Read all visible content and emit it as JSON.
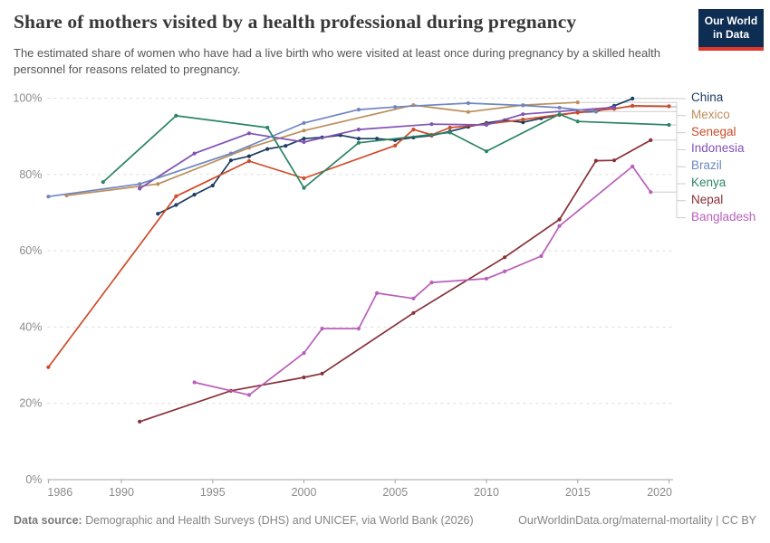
{
  "header": {
    "title": "Share of mothers visited by a health professional during pregnancy",
    "subtitle": "The estimated share of women who have had a live birth who were visited at least once during pregnancy by a skilled health personnel for reasons related to pregnancy.",
    "logo": {
      "line1": "Our World",
      "line2": "in Data",
      "bg_color": "#0d2d52",
      "accent_color": "#e0362c"
    }
  },
  "chart_data": {
    "type": "line",
    "title": "Share of mothers visited by a health professional during pregnancy",
    "xlabel": "",
    "ylabel": "",
    "xlim": [
      1986,
      2020
    ],
    "ylim": [
      0,
      100
    ],
    "x_ticks": [
      1986,
      1990,
      1995,
      2000,
      2005,
      2010,
      2015,
      2020
    ],
    "y_ticks": [
      0,
      20,
      40,
      60,
      80,
      100
    ],
    "y_tick_suffix": "%",
    "grid": "dashed-horizontal",
    "legend_position": "right",
    "grid_color": "#dcdcdc",
    "axis_color": "#a3a3a3",
    "tick_label_color": "#8b8b8b",
    "connector_color": "#cccccc",
    "series": [
      {
        "name": "China",
        "color": "#1d3d63",
        "points": [
          [
            1992,
            69.7
          ],
          [
            1993,
            72
          ],
          [
            1994,
            74.7
          ],
          [
            1995,
            77.1
          ],
          [
            1996,
            83.7
          ],
          [
            1997,
            84.8
          ],
          [
            1998,
            86.7
          ],
          [
            1999,
            87.5
          ],
          [
            2000,
            89.4
          ],
          [
            2001,
            89.7
          ],
          [
            2002,
            90.3
          ],
          [
            2003,
            89.4
          ],
          [
            2004,
            89.4
          ],
          [
            2005,
            89
          ],
          [
            2006,
            89.7
          ],
          [
            2007,
            90.2
          ],
          [
            2008,
            91.3
          ],
          [
            2009,
            92.5
          ],
          [
            2010,
            93.5
          ],
          [
            2011,
            94.2
          ],
          [
            2012,
            93.7
          ],
          [
            2013,
            94.7
          ],
          [
            2014,
            95.6
          ],
          [
            2015,
            96.3
          ],
          [
            2016,
            96.5
          ],
          [
            2017,
            98
          ],
          [
            2018,
            99.9
          ]
        ]
      },
      {
        "name": "Mexico",
        "color": "#bc8e5a",
        "points": [
          [
            1987,
            74.5
          ],
          [
            1992,
            77.5
          ],
          [
            1997,
            87
          ],
          [
            2000,
            91.5
          ],
          [
            2006,
            98.2
          ],
          [
            2009,
            96.4
          ],
          [
            2012,
            98.2
          ],
          [
            2015,
            98.9
          ]
        ]
      },
      {
        "name": "Senegal",
        "color": "#cf4a27",
        "points": [
          [
            1986,
            29.5
          ],
          [
            1993,
            74.3
          ],
          [
            1997,
            83.5
          ],
          [
            2000,
            79
          ],
          [
            2005,
            87.6
          ],
          [
            2006,
            91.8
          ],
          [
            2007,
            90.4
          ],
          [
            2008,
            92.3
          ],
          [
            2010,
            93.2
          ],
          [
            2012,
            94.4
          ],
          [
            2014,
            95.7
          ],
          [
            2015,
            96.2
          ],
          [
            2016,
            96.8
          ],
          [
            2017,
            97.2
          ],
          [
            2018,
            98
          ],
          [
            2020,
            97.9
          ]
        ]
      },
      {
        "name": "Indonesia",
        "color": "#8152b5",
        "points": [
          [
            1991,
            76.3
          ],
          [
            1994,
            85.5
          ],
          [
            1997,
            90.8
          ],
          [
            2000,
            88.5
          ],
          [
            2003,
            91.8
          ],
          [
            2007,
            93.2
          ],
          [
            2010,
            93
          ],
          [
            2012,
            95.8
          ],
          [
            2017,
            97.6
          ]
        ]
      },
      {
        "name": "Brazil",
        "color": "#6e87c0",
        "points": [
          [
            1986,
            74.2
          ],
          [
            1991,
            77.5
          ],
          [
            1996,
            85.5
          ],
          [
            2000,
            93.5
          ],
          [
            2003,
            97
          ],
          [
            2005,
            97.7
          ],
          [
            2009,
            98.7
          ],
          [
            2012,
            98.1
          ],
          [
            2014,
            97.5
          ],
          [
            2016,
            96.5
          ]
        ]
      },
      {
        "name": "Kenya",
        "color": "#2c8465",
        "points": [
          [
            1989,
            78
          ],
          [
            1993,
            95.4
          ],
          [
            1998,
            92.3
          ],
          [
            2000,
            76.5
          ],
          [
            2003,
            88.3
          ],
          [
            2008,
            91
          ],
          [
            2010,
            86.1
          ],
          [
            2014,
            95.8
          ],
          [
            2015,
            93.9
          ],
          [
            2020,
            93
          ]
        ]
      },
      {
        "name": "Nepal",
        "color": "#883039",
        "points": [
          [
            1991,
            15.2
          ],
          [
            1996,
            23.3
          ],
          [
            2000,
            26.8
          ],
          [
            2001,
            27.8
          ],
          [
            2006,
            43.7
          ],
          [
            2011,
            58.3
          ],
          [
            2014,
            68.2
          ],
          [
            2016,
            83.6
          ],
          [
            2017,
            83.7
          ],
          [
            2019,
            89
          ]
        ]
      },
      {
        "name": "Bangladesh",
        "color": "#ba5fba",
        "points": [
          [
            1994,
            25.5
          ],
          [
            1997,
            22.2
          ],
          [
            2000,
            33.2
          ],
          [
            2001,
            39.6
          ],
          [
            2003,
            39.6
          ],
          [
            2004,
            48.9
          ],
          [
            2006,
            47.5
          ],
          [
            2007,
            51.7
          ],
          [
            2010,
            52.7
          ],
          [
            2011,
            54.6
          ],
          [
            2013,
            58.6
          ],
          [
            2014,
            66.5
          ],
          [
            2018,
            82.1
          ],
          [
            2019,
            75.4
          ]
        ]
      }
    ]
  },
  "footer": {
    "source_label": "Data source:",
    "source_text": "Demographic and Health Surveys (DHS) and UNICEF, via World Bank (2026)",
    "link_text": "OurWorldinData.org/maternal-mortality | CC BY"
  }
}
